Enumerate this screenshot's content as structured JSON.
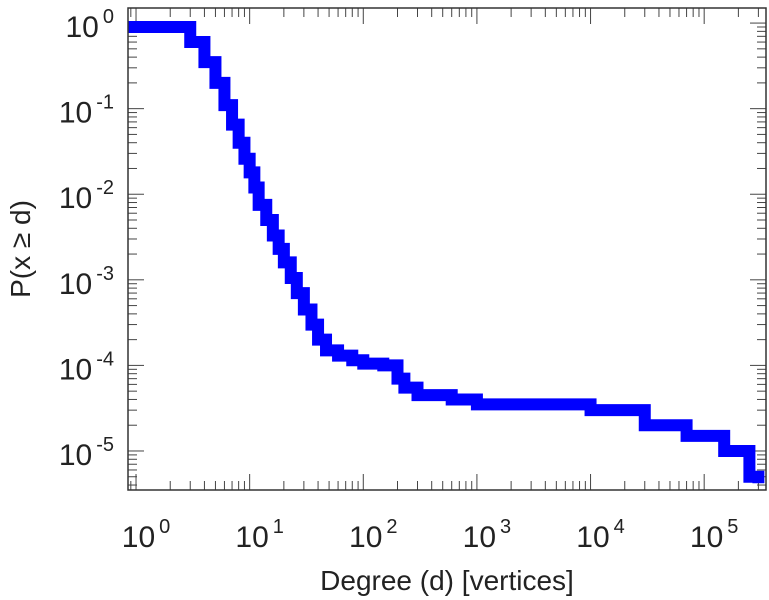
{
  "chart_data": {
    "type": "line",
    "step": true,
    "x_scale": "log",
    "y_scale": "log",
    "xlabel": "Degree (d) [vertices]",
    "ylabel": "P(x ≥ d)",
    "xlim": [
      0.85,
      350000
    ],
    "ylim": [
      3.5e-06,
      1.5
    ],
    "x_ticks": [
      {
        "base": "10",
        "exp": "0",
        "value": 1
      },
      {
        "base": "10",
        "exp": "1",
        "value": 10
      },
      {
        "base": "10",
        "exp": "2",
        "value": 100
      },
      {
        "base": "10",
        "exp": "3",
        "value": 1000
      },
      {
        "base": "10",
        "exp": "4",
        "value": 10000
      },
      {
        "base": "10",
        "exp": "5",
        "value": 100000
      }
    ],
    "y_ticks": [
      {
        "base": "10",
        "exp": "0",
        "value": 1
      },
      {
        "base": "10",
        "exp": "-1",
        "value": 0.1
      },
      {
        "base": "10",
        "exp": "-2",
        "value": 0.01
      },
      {
        "base": "10",
        "exp": "-3",
        "value": 0.001
      },
      {
        "base": "10",
        "exp": "-4",
        "value": 0.0001
      },
      {
        "base": "10",
        "exp": "-5",
        "value": 1e-05
      }
    ],
    "grid": false,
    "series": [
      {
        "color": "#0000ff",
        "x": [
          0.85,
          3,
          3,
          4,
          4,
          5,
          5,
          6,
          6,
          7,
          7,
          8,
          8,
          9,
          9,
          10,
          10,
          11,
          11,
          12,
          12,
          14,
          14,
          16,
          16,
          18,
          18,
          20,
          20,
          23,
          23,
          26,
          26,
          30,
          30,
          35,
          35,
          40,
          40,
          47,
          47,
          60,
          60,
          80,
          80,
          100,
          100,
          150,
          150,
          200,
          200,
          230,
          230,
          300,
          300,
          600,
          600,
          1000,
          1000,
          10000,
          10000,
          13000,
          13000,
          30000,
          30000,
          70000,
          70000,
          150000,
          150000,
          250000,
          250000,
          300000,
          300000
        ],
        "y": [
          0.9,
          0.9,
          0.6,
          0.6,
          0.35,
          0.35,
          0.2,
          0.2,
          0.11,
          0.11,
          0.065,
          0.065,
          0.04,
          0.04,
          0.026,
          0.026,
          0.018,
          0.018,
          0.012,
          0.012,
          0.0075,
          0.0075,
          0.005,
          0.005,
          0.0033,
          0.0033,
          0.0023,
          0.0023,
          0.0016,
          0.0016,
          0.00105,
          0.00105,
          0.0007,
          0.0007,
          0.00045,
          0.00045,
          0.0003,
          0.0003,
          0.0002,
          0.0002,
          0.00015,
          0.00015,
          0.00013,
          0.00013,
          0.000115,
          0.000115,
          0.000105,
          0.000105,
          0.0001,
          0.0001,
          7e-05,
          7e-05,
          5.5e-05,
          5.5e-05,
          4.5e-05,
          4.5e-05,
          4e-05,
          4e-05,
          3.5e-05,
          3.5e-05,
          3e-05,
          3e-05,
          3e-05,
          3e-05,
          2e-05,
          2e-05,
          1.5e-05,
          1.5e-05,
          1e-05,
          1e-05,
          5e-06,
          5e-06,
          4.2e-06
        ]
      }
    ]
  }
}
